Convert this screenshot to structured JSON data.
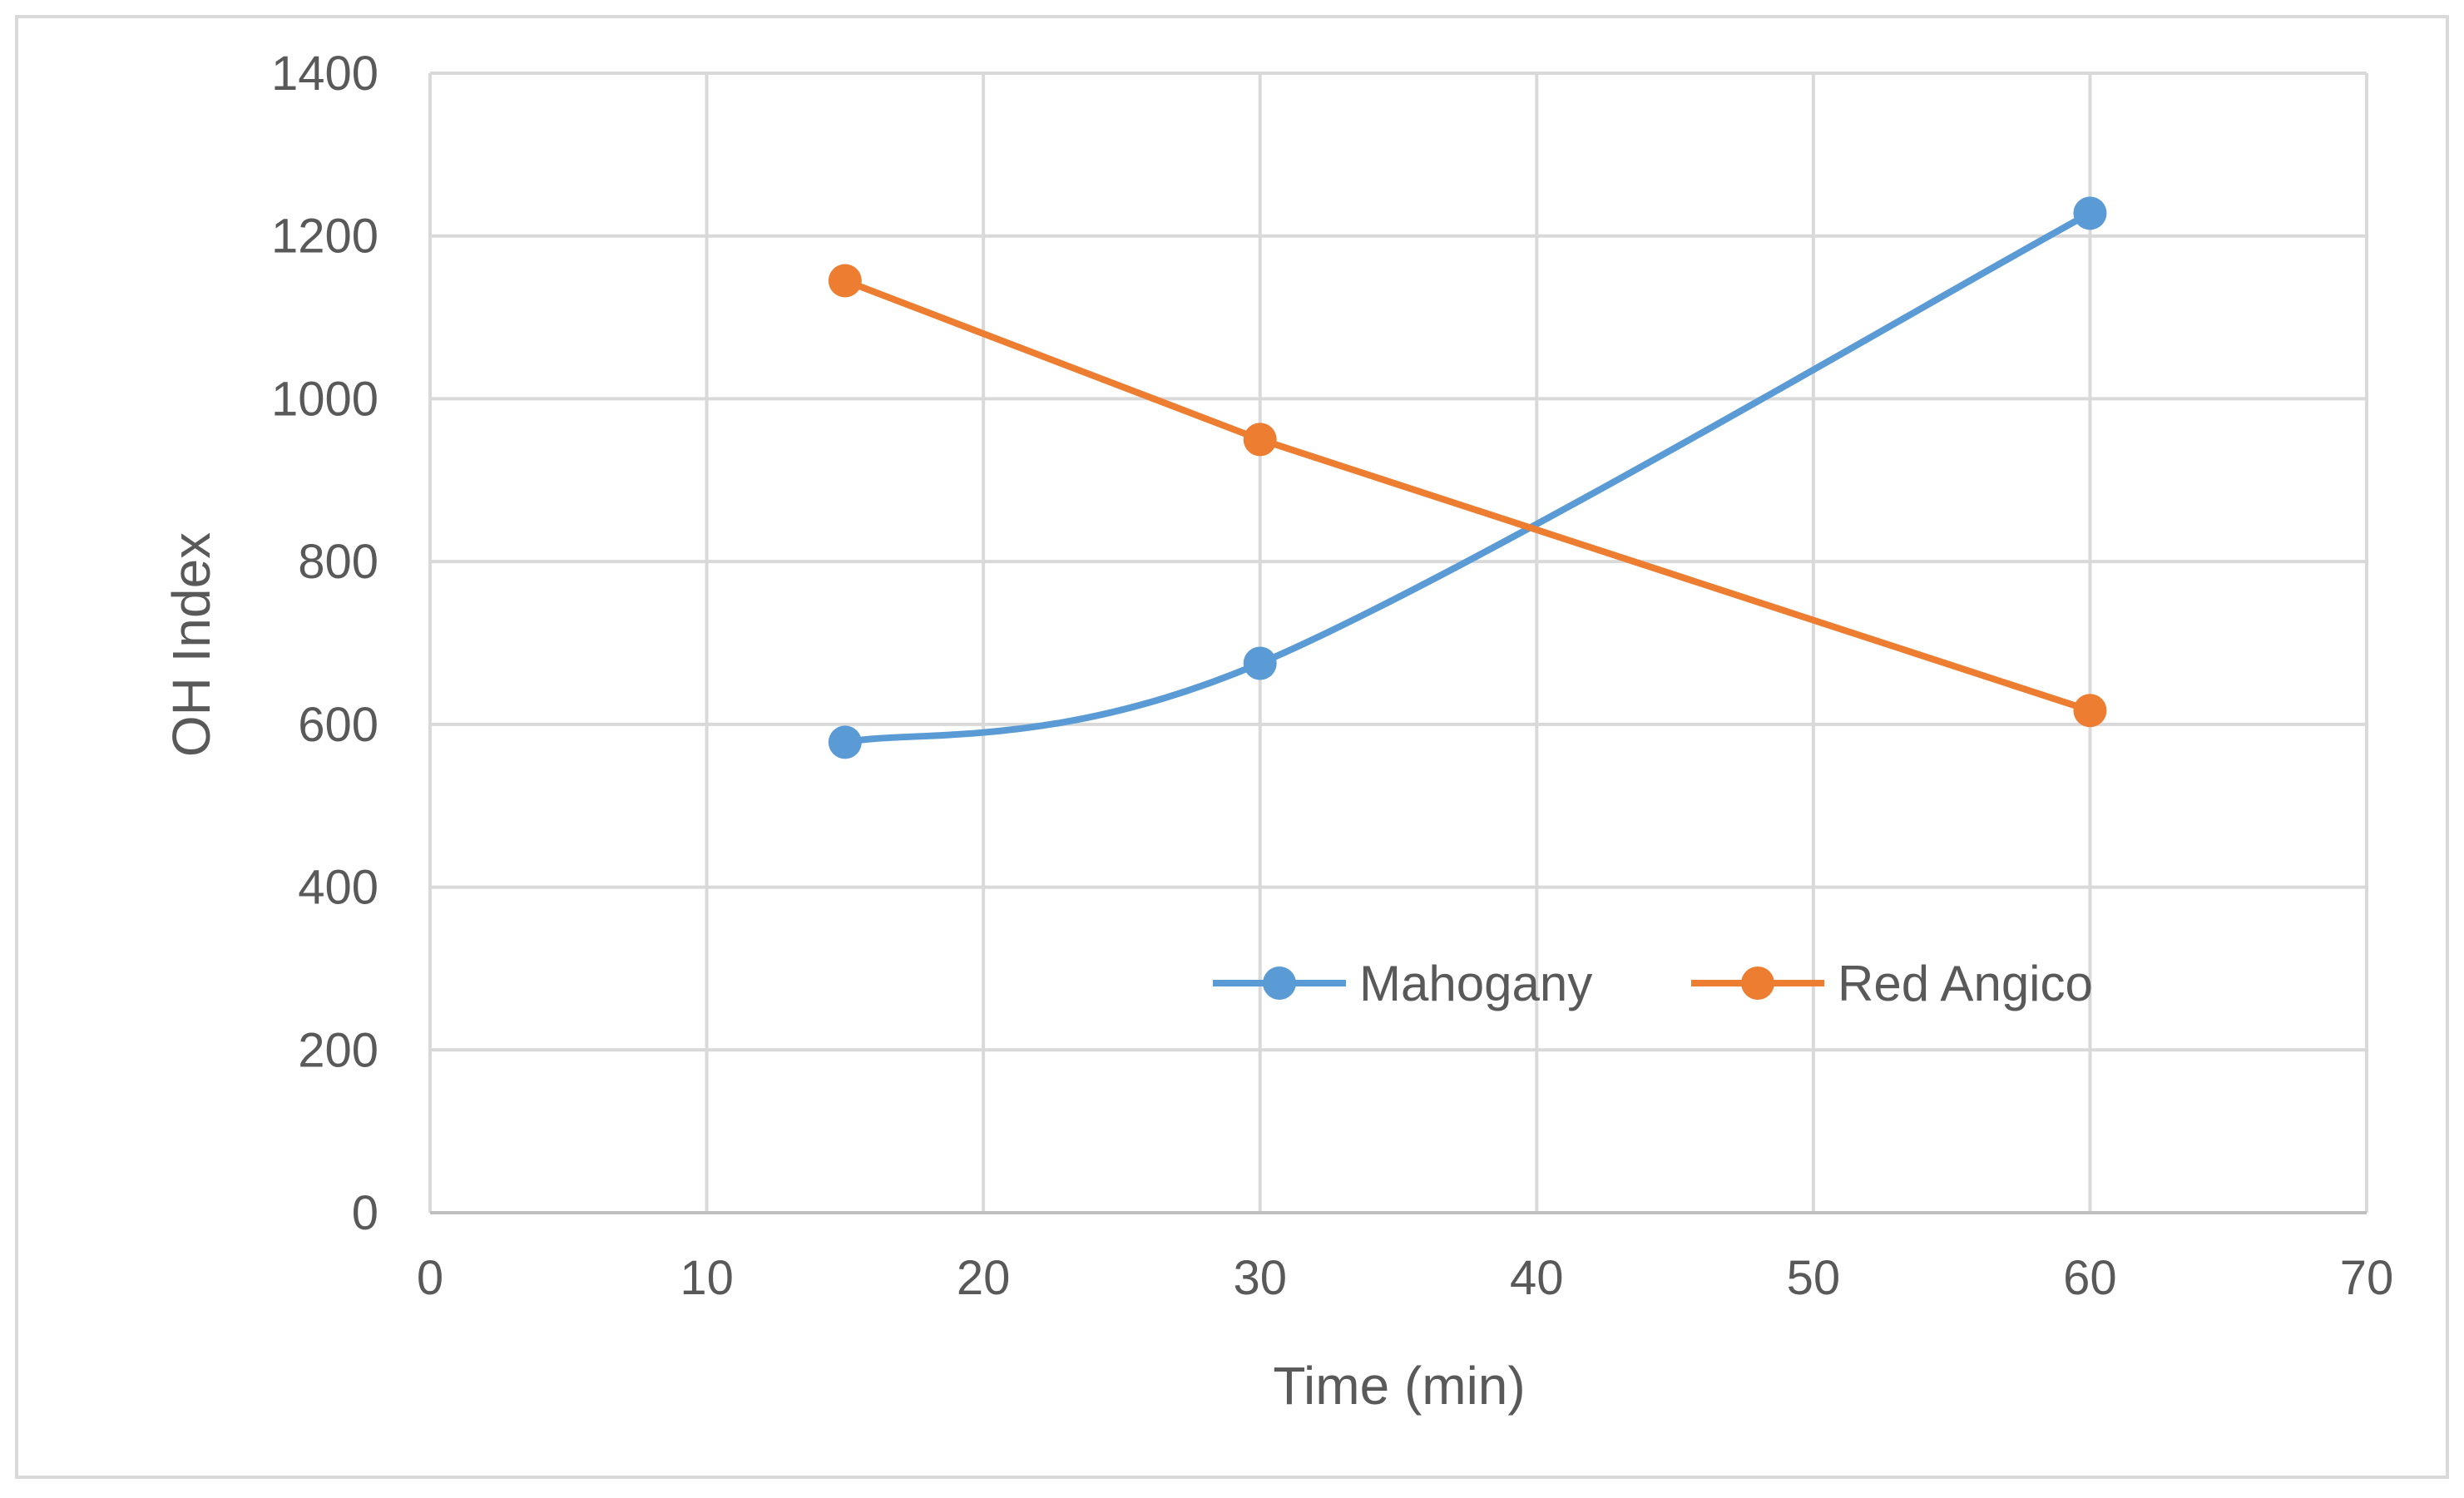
{
  "chart_data": {
    "type": "line",
    "title": "",
    "xlabel": "Time (min)",
    "ylabel": "OH Index",
    "xlim": [
      0,
      70
    ],
    "ylim": [
      0,
      1400
    ],
    "x_ticks": [
      0,
      10,
      20,
      30,
      40,
      50,
      60,
      70
    ],
    "y_ticks": [
      0,
      200,
      400,
      600,
      800,
      1000,
      1200,
      1400
    ],
    "grid": true,
    "legend_position": "inside-bottom-right",
    "series": [
      {
        "name": "Mahogany",
        "color": "#5B9BD5",
        "smooth": true,
        "x": [
          15,
          30,
          60
        ],
        "values": [
          578,
          675,
          1228
        ]
      },
      {
        "name": "Red Angico",
        "color": "#ED7D31",
        "smooth": false,
        "x": [
          15,
          30,
          60
        ],
        "values": [
          1145,
          950,
          617
        ]
      }
    ]
  }
}
